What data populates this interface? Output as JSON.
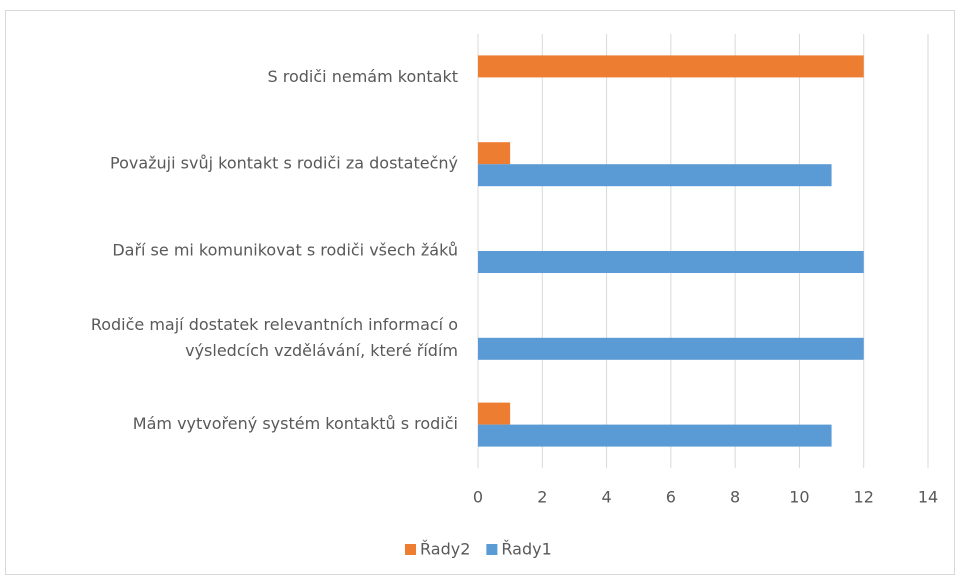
{
  "chart_data": {
    "type": "bar",
    "orientation": "horizontal",
    "categories": [
      "S rodiči nemám kontakt",
      "Považuji svůj kontakt s rodiči za dostatečný",
      "Daří se mi komunikovat s rodiči všech žáků",
      "Rodiče mají dostatek relevantních informací o výsledcích vzdělávání, které řídím",
      "Mám vytvořený systém kontaktů s rodiči"
    ],
    "series": [
      {
        "name": "Řady2",
        "color": "#ed7d31",
        "values": [
          12,
          1,
          null,
          null,
          1
        ]
      },
      {
        "name": "Řady1",
        "color": "#5b9bd5",
        "values": [
          null,
          11,
          12,
          12,
          11
        ]
      }
    ],
    "xlim": [
      0,
      14
    ],
    "xticks": [
      0,
      2,
      4,
      6,
      8,
      10,
      12,
      14
    ],
    "grid": true,
    "legend": "bottom"
  }
}
